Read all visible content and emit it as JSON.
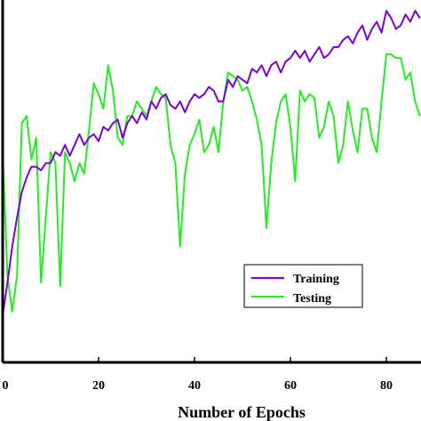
{
  "chart_data": {
    "type": "line",
    "title": "",
    "xlabel": "Number of Epochs",
    "ylabel": "",
    "xlim": [
      0,
      87
    ],
    "ylim": [
      0,
      100
    ],
    "grid": false,
    "legend_position": "bottom-right",
    "x_ticks": [
      "0",
      "20",
      "40",
      "60",
      "80"
    ],
    "series": [
      {
        "name": "Training",
        "color": "#8000d0",
        "values": [
          [
            0,
            13
          ],
          [
            1,
            22
          ],
          [
            2,
            32
          ],
          [
            3,
            40
          ],
          [
            4,
            47
          ],
          [
            5,
            51
          ],
          [
            6,
            54
          ],
          [
            7,
            54
          ],
          [
            8,
            53
          ],
          [
            9,
            55
          ],
          [
            10,
            55
          ],
          [
            11,
            58
          ],
          [
            12,
            57
          ],
          [
            13,
            60
          ],
          [
            14,
            57
          ],
          [
            15,
            60
          ],
          [
            16,
            63
          ],
          [
            17,
            60
          ],
          [
            18,
            62
          ],
          [
            19,
            63
          ],
          [
            20,
            61
          ],
          [
            21,
            65
          ],
          [
            22,
            64
          ],
          [
            23,
            66
          ],
          [
            24,
            67
          ],
          [
            25,
            62
          ],
          [
            26,
            66
          ],
          [
            27,
            68
          ],
          [
            28,
            66
          ],
          [
            29,
            69
          ],
          [
            30,
            67
          ],
          [
            31,
            72
          ],
          [
            32,
            70
          ],
          [
            33,
            73
          ],
          [
            34,
            74
          ],
          [
            35,
            71
          ],
          [
            36,
            70
          ],
          [
            37,
            72
          ],
          [
            38,
            69
          ],
          [
            39,
            72
          ],
          [
            40,
            74
          ],
          [
            41,
            73
          ],
          [
            42,
            74
          ],
          [
            43,
            76
          ],
          [
            44,
            75
          ],
          [
            45,
            72
          ],
          [
            46,
            72
          ],
          [
            47,
            78
          ],
          [
            48,
            76
          ],
          [
            49,
            79
          ],
          [
            50,
            78
          ],
          [
            51,
            77
          ],
          [
            52,
            81
          ],
          [
            53,
            80
          ],
          [
            54,
            82
          ],
          [
            55,
            79
          ],
          [
            56,
            82
          ],
          [
            57,
            83
          ],
          [
            58,
            80
          ],
          [
            59,
            83
          ],
          [
            60,
            84
          ],
          [
            61,
            86
          ],
          [
            62,
            84
          ],
          [
            63,
            86
          ],
          [
            64,
            83
          ],
          [
            65,
            85
          ],
          [
            66,
            87
          ],
          [
            67,
            84
          ],
          [
            68,
            85
          ],
          [
            69,
            87
          ],
          [
            70,
            87
          ],
          [
            71,
            89
          ],
          [
            72,
            90
          ],
          [
            73,
            88
          ],
          [
            74,
            91
          ],
          [
            75,
            93
          ],
          [
            76,
            89
          ],
          [
            77,
            92
          ],
          [
            78,
            94
          ],
          [
            79,
            91
          ],
          [
            80,
            97
          ],
          [
            81,
            95
          ],
          [
            82,
            92
          ],
          [
            83,
            93
          ],
          [
            84,
            96
          ],
          [
            85,
            94
          ],
          [
            86,
            97
          ],
          [
            87,
            95
          ]
        ]
      },
      {
        "name": "Testing",
        "color": "#22ee22",
        "values": [
          [
            0,
            58
          ],
          [
            1,
            24
          ],
          [
            2,
            14
          ],
          [
            3,
            24
          ],
          [
            4,
            66
          ],
          [
            5,
            68
          ],
          [
            6,
            56
          ],
          [
            7,
            62
          ],
          [
            8,
            22
          ],
          [
            9,
            40
          ],
          [
            10,
            58
          ],
          [
            11,
            55
          ],
          [
            12,
            21
          ],
          [
            13,
            58
          ],
          [
            14,
            55
          ],
          [
            15,
            50
          ],
          [
            16,
            55
          ],
          [
            17,
            52
          ],
          [
            18,
            64
          ],
          [
            19,
            77
          ],
          [
            20,
            74
          ],
          [
            21,
            70
          ],
          [
            22,
            82
          ],
          [
            23,
            75
          ],
          [
            24,
            62
          ],
          [
            25,
            60
          ],
          [
            26,
            68
          ],
          [
            27,
            68
          ],
          [
            28,
            72
          ],
          [
            29,
            70
          ],
          [
            30,
            68
          ],
          [
            31,
            72
          ],
          [
            32,
            76
          ],
          [
            33,
            74
          ],
          [
            34,
            73
          ],
          [
            35,
            60
          ],
          [
            36,
            55
          ],
          [
            37,
            32
          ],
          [
            38,
            52
          ],
          [
            39,
            60
          ],
          [
            40,
            63
          ],
          [
            41,
            67
          ],
          [
            42,
            58
          ],
          [
            43,
            60
          ],
          [
            44,
            65
          ],
          [
            45,
            58
          ],
          [
            46,
            72
          ],
          [
            47,
            80
          ],
          [
            48,
            79
          ],
          [
            49,
            78
          ],
          [
            50,
            75
          ],
          [
            51,
            76
          ],
          [
            52,
            72
          ],
          [
            53,
            67
          ],
          [
            54,
            60
          ],
          [
            55,
            37
          ],
          [
            56,
            55
          ],
          [
            57,
            66
          ],
          [
            58,
            72
          ],
          [
            59,
            74
          ],
          [
            60,
            65
          ],
          [
            61,
            50
          ],
          [
            62,
            75
          ],
          [
            63,
            72
          ],
          [
            64,
            74
          ],
          [
            65,
            73
          ],
          [
            66,
            62
          ],
          [
            67,
            65
          ],
          [
            68,
            72
          ],
          [
            69,
            68
          ],
          [
            70,
            55
          ],
          [
            71,
            60
          ],
          [
            72,
            72
          ],
          [
            73,
            64
          ],
          [
            74,
            58
          ],
          [
            75,
            70
          ],
          [
            76,
            70
          ],
          [
            77,
            62
          ],
          [
            78,
            58
          ],
          [
            79,
            72
          ],
          [
            80,
            85
          ],
          [
            81,
            85
          ],
          [
            82,
            84
          ],
          [
            83,
            84
          ],
          [
            84,
            78
          ],
          [
            85,
            80
          ],
          [
            86,
            72
          ],
          [
            87,
            68
          ]
        ]
      }
    ]
  }
}
